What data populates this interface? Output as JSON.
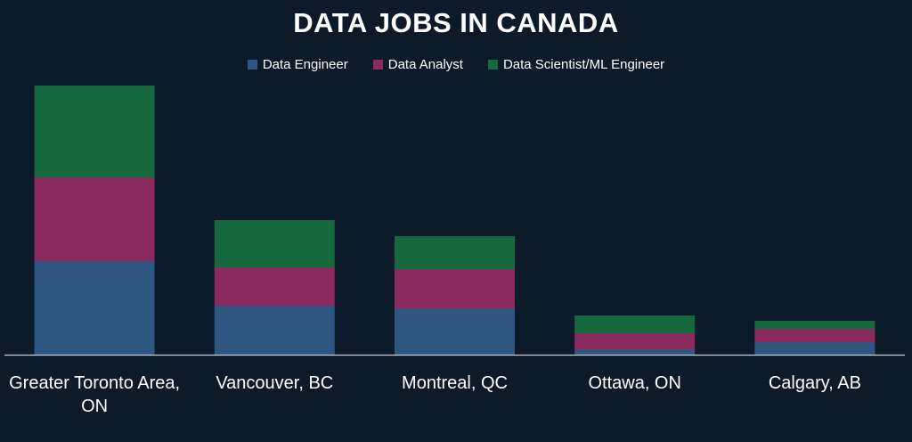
{
  "chart_data": {
    "type": "bar",
    "stacked": true,
    "title": "DATA JOBS IN CANADA",
    "categories": [
      "Greater Toronto Area, ON",
      "Vancouver, BC",
      "Montreal, QC",
      "Ottawa, ON",
      "Calgary, AB"
    ],
    "category_lines": [
      [
        "Greater Toronto Area,",
        "ON"
      ],
      [
        "Vancouver, BC"
      ],
      [
        "Montreal, QC"
      ],
      [
        "Ottawa, ON"
      ],
      [
        "Calgary, AB"
      ]
    ],
    "series": [
      {
        "name": "Data Engineer",
        "color": "#2f5680",
        "values": [
          105,
          55,
          52,
          6,
          14
        ]
      },
      {
        "name": "Data Analyst",
        "color": "#8b2a5e",
        "values": [
          94,
          43,
          44,
          18,
          15
        ]
      },
      {
        "name": "Data Scientist/ML Engineer",
        "color": "#16683e",
        "values": [
          103,
          53,
          37,
          20,
          9
        ]
      }
    ],
    "ylim": [
      0,
      302
    ],
    "grid": false,
    "y_axis_visible": false,
    "legend_position": "top",
    "axis_line_color": "#c8ccd2"
  }
}
